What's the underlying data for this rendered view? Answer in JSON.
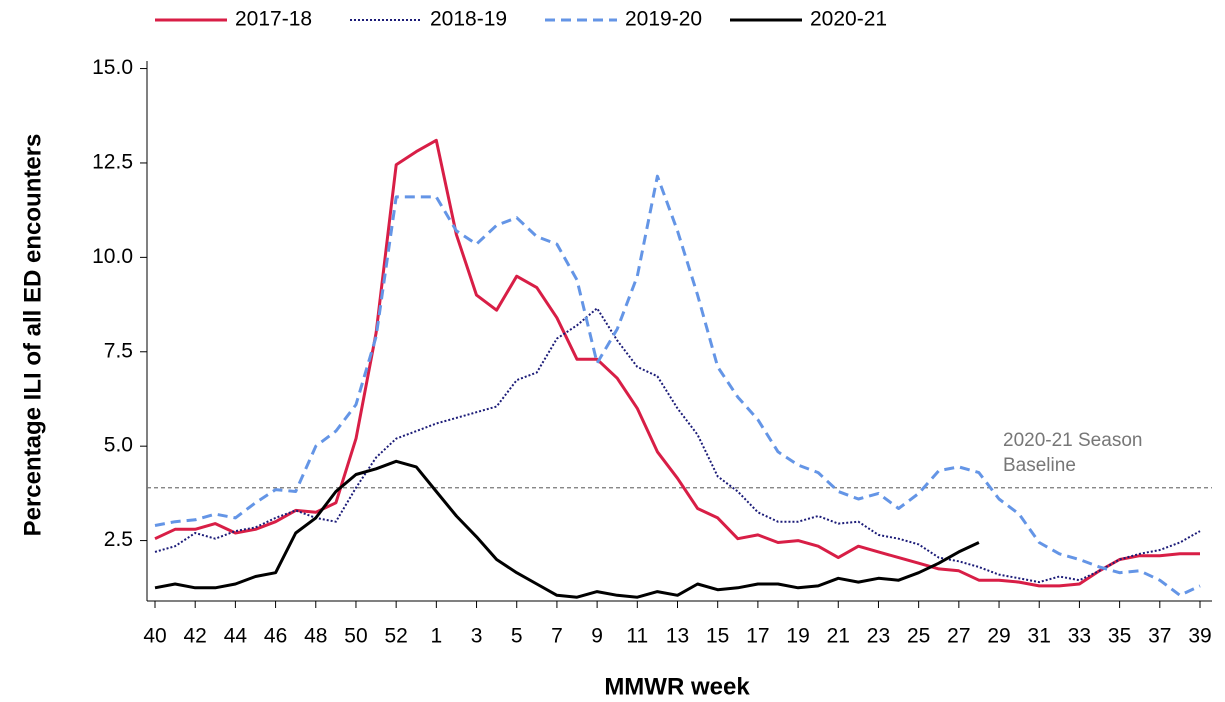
{
  "chart_data": {
    "type": "line",
    "xlabel": "MMWR week",
    "ylabel": "Percentage ILI of all ED encounters",
    "categories": [
      "40",
      null,
      "42",
      null,
      "44",
      null,
      "46",
      null,
      "48",
      null,
      "50",
      null,
      "52",
      null,
      "1",
      null,
      "3",
      null,
      "5",
      null,
      "7",
      null,
      "9",
      null,
      "11",
      null,
      "13",
      null,
      "15",
      null,
      "17",
      null,
      "19",
      null,
      "21",
      null,
      "23",
      null,
      "25",
      null,
      "27",
      null,
      "29",
      null,
      "31",
      null,
      "33",
      null,
      "35",
      null,
      "37",
      null,
      "39"
    ],
    "series": [
      {
        "name": "2017-18",
        "color": "#d81e46",
        "line_style": "solid",
        "values": [
          2.55,
          2.8,
          2.8,
          2.95,
          2.7,
          2.8,
          3.0,
          3.3,
          3.25,
          3.5,
          5.2,
          8.0,
          12.45,
          12.8,
          13.1,
          10.6,
          9.0,
          8.6,
          9.5,
          9.2,
          8.4,
          7.3,
          7.3,
          6.8,
          6.0,
          4.85,
          4.15,
          3.35,
          3.1,
          2.55,
          2.65,
          2.45,
          2.5,
          2.35,
          2.05,
          2.35,
          2.2,
          2.05,
          1.9,
          1.75,
          1.7,
          1.45,
          1.45,
          1.4,
          1.3,
          1.3,
          1.35,
          1.7,
          2.0,
          2.1,
          2.1,
          2.15,
          2.15
        ]
      },
      {
        "name": "2018-19",
        "color": "#1c1c78",
        "line_style": "dotted",
        "values": [
          2.2,
          2.35,
          2.7,
          2.55,
          2.75,
          2.85,
          3.1,
          3.3,
          3.1,
          3.0,
          3.9,
          4.7,
          5.2,
          5.4,
          5.6,
          5.75,
          5.9,
          6.05,
          6.75,
          6.95,
          7.85,
          8.2,
          8.65,
          7.8,
          7.1,
          6.85,
          6.0,
          5.3,
          4.2,
          3.8,
          3.25,
          3.0,
          3.0,
          3.15,
          2.95,
          3.0,
          2.65,
          2.55,
          2.4,
          2.05,
          1.95,
          1.8,
          1.6,
          1.5,
          1.4,
          1.55,
          1.45,
          1.7,
          2.0,
          2.15,
          2.25,
          2.45,
          2.75
        ]
      },
      {
        "name": "2019-20",
        "color": "#6495e6",
        "line_style": "dashed",
        "values": [
          2.9,
          3.0,
          3.05,
          3.2,
          3.1,
          3.5,
          3.85,
          3.8,
          5.0,
          5.4,
          6.1,
          7.9,
          11.6,
          11.6,
          11.6,
          10.7,
          10.35,
          10.85,
          11.05,
          10.55,
          10.35,
          9.4,
          7.2,
          8.1,
          9.5,
          12.15,
          10.7,
          9.0,
          7.1,
          6.3,
          5.7,
          4.85,
          4.5,
          4.3,
          3.8,
          3.6,
          3.75,
          3.35,
          3.75,
          4.35,
          4.45,
          4.3,
          3.6,
          3.2,
          2.45,
          2.15,
          2.0,
          1.8,
          1.65,
          1.7,
          1.45,
          1.05,
          1.3
        ]
      },
      {
        "name": "2020-21",
        "color": "#000000",
        "line_style": "solid",
        "values": [
          1.25,
          1.35,
          1.25,
          1.25,
          1.35,
          1.55,
          1.65,
          2.7,
          3.1,
          3.8,
          4.25,
          4.4,
          4.6,
          4.45,
          3.8,
          3.15,
          2.6,
          2.0,
          1.65,
          1.35,
          1.05,
          1.0,
          1.15,
          1.05,
          1.0,
          1.15,
          1.05,
          1.35,
          1.2,
          1.25,
          1.35,
          1.35,
          1.25,
          1.3,
          1.5,
          1.4,
          1.5,
          1.45,
          1.65,
          1.9,
          2.2,
          2.45,
          null,
          null,
          null,
          null,
          null,
          null,
          null,
          null,
          null,
          null,
          null
        ]
      }
    ],
    "ylim": [
      0.9,
      15.2
    ],
    "yticks": [
      2.5,
      {
        "value": 5,
        "label": "5.0"
      },
      7.5,
      {
        "value": 10,
        "label": "10.0"
      },
      12.5,
      {
        "value": 15,
        "label": "15.0"
      }
    ],
    "baseline": {
      "value": 3.9,
      "label_lines": [
        "2020-21 Season",
        "Baseline"
      ],
      "color": "#777777"
    },
    "legend": "top"
  }
}
